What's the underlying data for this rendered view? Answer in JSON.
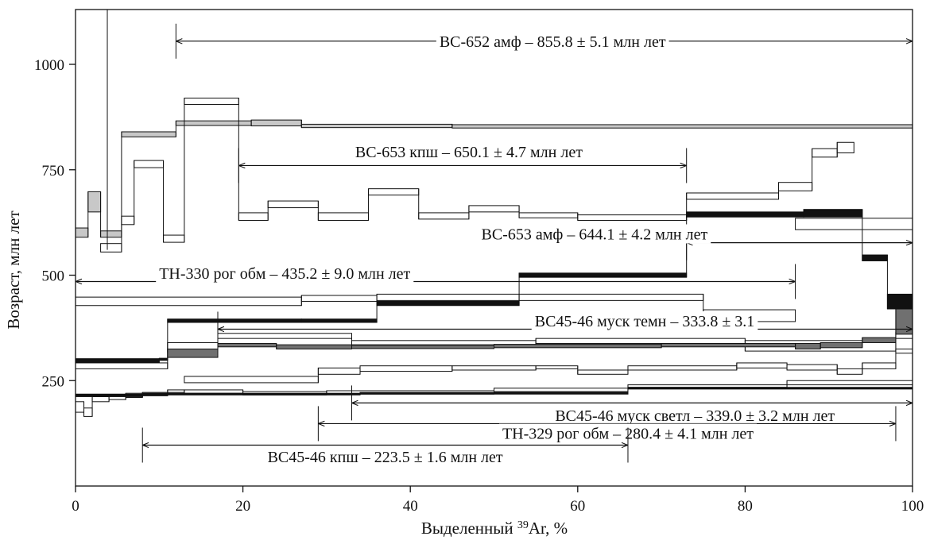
{
  "chart_data": {
    "type": "line",
    "xlabel": "Выделенный ³⁹Ar, %",
    "xlabel_prefix": "Выделенный ",
    "xlabel_sup": "39",
    "xlabel_suffix": "Ar, %",
    "ylabel": "Возраст, млн лет",
    "xlim": [
      0,
      100
    ],
    "ylim": [
      0,
      1130
    ],
    "xticks": [
      0,
      20,
      40,
      60,
      80,
      100
    ],
    "yticks": [
      250,
      500,
      750,
      1000
    ],
    "grid": false,
    "series": [
      {
        "style": "open",
        "fill": "#ffffff",
        "steps": [
          {
            "x0": 0,
            "x1": 1.5,
            "lo": 590,
            "hi": 612,
            "fill": "#c8c8c8"
          },
          {
            "x0": 1.5,
            "x1": 3,
            "lo": 650,
            "hi": 698,
            "fill": "#c8c8c8"
          },
          {
            "x0": 3,
            "x1": 5.5,
            "lo": 590,
            "hi": 605,
            "fill": "#c8c8c8"
          },
          {
            "x0": 5.5,
            "x1": 12,
            "lo": 828,
            "hi": 840,
            "fill": "#c8c8c8"
          },
          {
            "x0": 12,
            "x1": 21,
            "lo": 855,
            "hi": 866,
            "fill": "#c8c8c8"
          },
          {
            "x0": 21,
            "x1": 27,
            "lo": 854,
            "hi": 868,
            "fill": "#c8c8c8"
          },
          {
            "x0": 27,
            "x1": 45,
            "lo": 850,
            "hi": 858,
            "fill": "#c8c8c8"
          },
          {
            "x0": 45,
            "x1": 100,
            "lo": 849,
            "hi": 857,
            "fill": "#c8c8c8"
          }
        ]
      },
      {
        "style": "open",
        "fill": "#ffffff",
        "steps": [
          {
            "x0": 3,
            "x1": 5.5,
            "lo": 555,
            "hi": 575
          },
          {
            "x0": 5.5,
            "x1": 7,
            "lo": 620,
            "hi": 640
          },
          {
            "x0": 7,
            "x1": 10.5,
            "lo": 755,
            "hi": 772
          },
          {
            "x0": 10.5,
            "x1": 13,
            "lo": 578,
            "hi": 595
          },
          {
            "x0": 13,
            "x1": 19.5,
            "lo": 905,
            "hi": 920
          },
          {
            "x0": 19.5,
            "x1": 23,
            "lo": 630,
            "hi": 648
          },
          {
            "x0": 23,
            "x1": 29,
            "lo": 660,
            "hi": 676
          },
          {
            "x0": 29,
            "x1": 35,
            "lo": 630,
            "hi": 648
          },
          {
            "x0": 35,
            "x1": 41,
            "lo": 690,
            "hi": 705
          },
          {
            "x0": 41,
            "x1": 47,
            "lo": 633,
            "hi": 648
          },
          {
            "x0": 47,
            "x1": 53,
            "lo": 650,
            "hi": 665
          },
          {
            "x0": 53,
            "x1": 60,
            "lo": 636,
            "hi": 648
          },
          {
            "x0": 60,
            "x1": 73,
            "lo": 630,
            "hi": 643
          },
          {
            "x0": 73,
            "x1": 84,
            "lo": 680,
            "hi": 695
          },
          {
            "x0": 84,
            "x1": 88,
            "lo": 700,
            "hi": 720
          },
          {
            "x0": 88,
            "x1": 91,
            "lo": 780,
            "hi": 800
          },
          {
            "x0": 91,
            "x1": 93,
            "lo": 790,
            "hi": 815
          },
          {
            "x0": 86,
            "x1": 100,
            "lo": 608,
            "hi": 635
          }
        ]
      },
      {
        "style": "filled",
        "fill": "#111111",
        "steps": [
          {
            "x0": 0,
            "x1": 10,
            "lo": 290,
            "hi": 302
          },
          {
            "x0": 10,
            "x1": 11,
            "lo": 298,
            "hi": 303
          },
          {
            "x0": 11,
            "x1": 27,
            "lo": 388,
            "hi": 396
          },
          {
            "x0": 27,
            "x1": 36,
            "lo": 388,
            "hi": 396
          },
          {
            "x0": 36,
            "x1": 53,
            "lo": 428,
            "hi": 438
          },
          {
            "x0": 53,
            "x1": 73,
            "lo": 495,
            "hi": 505
          },
          {
            "x0": 73,
            "x1": 87,
            "lo": 638,
            "hi": 650
          },
          {
            "x0": 87,
            "x1": 94,
            "lo": 638,
            "hi": 656
          },
          {
            "x0": 94,
            "x1": 97,
            "lo": 534,
            "hi": 548
          },
          {
            "x0": 97,
            "x1": 100,
            "lo": 420,
            "hi": 455
          }
        ]
      },
      {
        "style": "open",
        "fill": "#ffffff",
        "steps": [
          {
            "x0": 0,
            "x1": 27,
            "lo": 428,
            "hi": 448
          },
          {
            "x0": 27,
            "x1": 36,
            "lo": 438,
            "hi": 452
          },
          {
            "x0": 36,
            "x1": 53,
            "lo": 440,
            "hi": 455
          },
          {
            "x0": 53,
            "x1": 75,
            "lo": 440,
            "hi": 455
          },
          {
            "x0": 75,
            "x1": 86,
            "lo": 390,
            "hi": 418
          },
          {
            "x0": 0,
            "x1": 11,
            "lo": 278,
            "hi": 292
          },
          {
            "x0": 11,
            "x1": 17,
            "lo": 318,
            "hi": 340
          },
          {
            "x0": 17,
            "x1": 33,
            "lo": 350,
            "hi": 362
          },
          {
            "x0": 33,
            "x1": 55,
            "lo": 335,
            "hi": 345
          },
          {
            "x0": 55,
            "x1": 80,
            "lo": 338,
            "hi": 350
          },
          {
            "x0": 80,
            "x1": 98,
            "lo": 320,
            "hi": 345
          },
          {
            "x0": 98,
            "x1": 100,
            "lo": 350,
            "hi": 365
          }
        ]
      },
      {
        "style": "filled",
        "fill": "#707070",
        "steps": [
          {
            "x0": 11,
            "x1": 17,
            "lo": 305,
            "hi": 325
          },
          {
            "x0": 17,
            "x1": 24,
            "lo": 330,
            "hi": 338
          },
          {
            "x0": 24,
            "x1": 33,
            "lo": 325,
            "hi": 335
          },
          {
            "x0": 33,
            "x1": 50,
            "lo": 326,
            "hi": 334
          },
          {
            "x0": 50,
            "x1": 70,
            "lo": 328,
            "hi": 336
          },
          {
            "x0": 70,
            "x1": 86,
            "lo": 330,
            "hi": 338
          },
          {
            "x0": 86,
            "x1": 89,
            "lo": 325,
            "hi": 338
          },
          {
            "x0": 89,
            "x1": 94,
            "lo": 328,
            "hi": 340
          },
          {
            "x0": 94,
            "x1": 98,
            "lo": 340,
            "hi": 352
          },
          {
            "x0": 98,
            "x1": 100,
            "lo": 360,
            "hi": 420
          }
        ]
      },
      {
        "style": "open",
        "fill": "#ffffff",
        "steps": [
          {
            "x0": 0,
            "x1": 1,
            "lo": 175,
            "hi": 200
          },
          {
            "x0": 1,
            "x1": 2,
            "lo": 165,
            "hi": 185
          },
          {
            "x0": 2,
            "x1": 4,
            "lo": 200,
            "hi": 212
          },
          {
            "x0": 4,
            "x1": 6,
            "lo": 205,
            "hi": 215
          },
          {
            "x0": 6,
            "x1": 8,
            "lo": 210,
            "hi": 220
          },
          {
            "x0": 8,
            "x1": 11,
            "lo": 215,
            "hi": 222
          },
          {
            "x0": 11,
            "x1": 13,
            "lo": 222,
            "hi": 228
          },
          {
            "x0": 13,
            "x1": 20,
            "lo": 220,
            "hi": 228
          },
          {
            "x0": 20,
            "x1": 30,
            "lo": 216,
            "hi": 224
          },
          {
            "x0": 30,
            "x1": 50,
            "lo": 218,
            "hi": 226
          },
          {
            "x0": 50,
            "x1": 66,
            "lo": 224,
            "hi": 232
          },
          {
            "x0": 66,
            "x1": 85,
            "lo": 234,
            "hi": 240
          },
          {
            "x0": 85,
            "x1": 100,
            "lo": 240,
            "hi": 250
          }
        ]
      },
      {
        "style": "open",
        "fill": "#ffffff",
        "steps": [
          {
            "x0": 13,
            "x1": 29,
            "lo": 245,
            "hi": 260
          },
          {
            "x0": 29,
            "x1": 34,
            "lo": 265,
            "hi": 280
          },
          {
            "x0": 34,
            "x1": 45,
            "lo": 272,
            "hi": 285
          },
          {
            "x0": 45,
            "x1": 55,
            "lo": 275,
            "hi": 285
          },
          {
            "x0": 55,
            "x1": 60,
            "lo": 278,
            "hi": 285
          },
          {
            "x0": 60,
            "x1": 66,
            "lo": 265,
            "hi": 275
          },
          {
            "x0": 66,
            "x1": 79,
            "lo": 275,
            "hi": 285
          },
          {
            "x0": 79,
            "x1": 85,
            "lo": 280,
            "hi": 292
          },
          {
            "x0": 85,
            "x1": 91,
            "lo": 275,
            "hi": 288
          },
          {
            "x0": 91,
            "x1": 94,
            "lo": 265,
            "hi": 278
          },
          {
            "x0": 94,
            "x1": 98,
            "lo": 278,
            "hi": 292
          },
          {
            "x0": 98,
            "x1": 100,
            "lo": 315,
            "hi": 325
          }
        ]
      },
      {
        "style": "filled",
        "fill": "#111111",
        "steps": [
          {
            "x0": 0,
            "x1": 8,
            "lo": 212,
            "hi": 218
          },
          {
            "x0": 8,
            "x1": 11,
            "lo": 214,
            "hi": 220
          },
          {
            "x0": 11,
            "x1": 34,
            "lo": 216,
            "hi": 220
          },
          {
            "x0": 34,
            "x1": 66,
            "lo": 218,
            "hi": 222
          },
          {
            "x0": 66,
            "x1": 100,
            "lo": 230,
            "hi": 234
          }
        ]
      }
    ],
    "plateaus": [
      {
        "label": "ВС-652 амф – 855.8 ± 5.1 млн лет",
        "x0": 12,
        "x1": 100,
        "y": 1055,
        "text_x": 57,
        "text_y": 1055,
        "arrow_left": true,
        "arrow_right": true
      },
      {
        "label": "ВС-653 кпш – 650.1 ± 4.7 млн лет",
        "x0": 19.5,
        "x1": 73,
        "y": 760,
        "text_x": 47,
        "text_y": 793,
        "arrow_left": true,
        "arrow_right": true
      },
      {
        "label": "ВС-653 амф – 644.1 ± 4.2 млн лет",
        "x0": 73,
        "x1": 100,
        "y": 577,
        "text_x": 62,
        "text_y": 598,
        "arrow_left": true,
        "arrow_right": true
      },
      {
        "label": "ТН-330 рог обм – 435.2 ± 9.0 млн лет",
        "x0": 0,
        "x1": 86,
        "y": 485,
        "text_x": 25,
        "text_y": 505,
        "arrow_left": true,
        "arrow_right": true
      },
      {
        "label": "ВС45-46 муск темн – 333.8 ± 3.1",
        "x0": 17,
        "x1": 100,
        "y": 372,
        "text_x": 68,
        "text_y": 392,
        "arrow_left": true,
        "arrow_right": true
      },
      {
        "label": "ВС45-46 муск светл – 339.0 ± 3.2 млн лет",
        "x0": 33,
        "x1": 100,
        "y": 197,
        "text_x": 74,
        "text_y": 168,
        "arrow_left": true,
        "arrow_right": true
      },
      {
        "label": "ТН-329 рог обм – 280.4 ± 4.1 млн лет",
        "x0": 29,
        "x1": 98,
        "y": 148,
        "text_x": 66,
        "text_y": 125,
        "arrow_left": true,
        "arrow_right": true
      },
      {
        "label": "ВС45-46 кпш – 223.5 ± 1.6 млн лет",
        "x0": 8,
        "x1": 66,
        "y": 97,
        "text_x": 37,
        "text_y": 70,
        "arrow_left": true,
        "arrow_right": true
      }
    ]
  }
}
